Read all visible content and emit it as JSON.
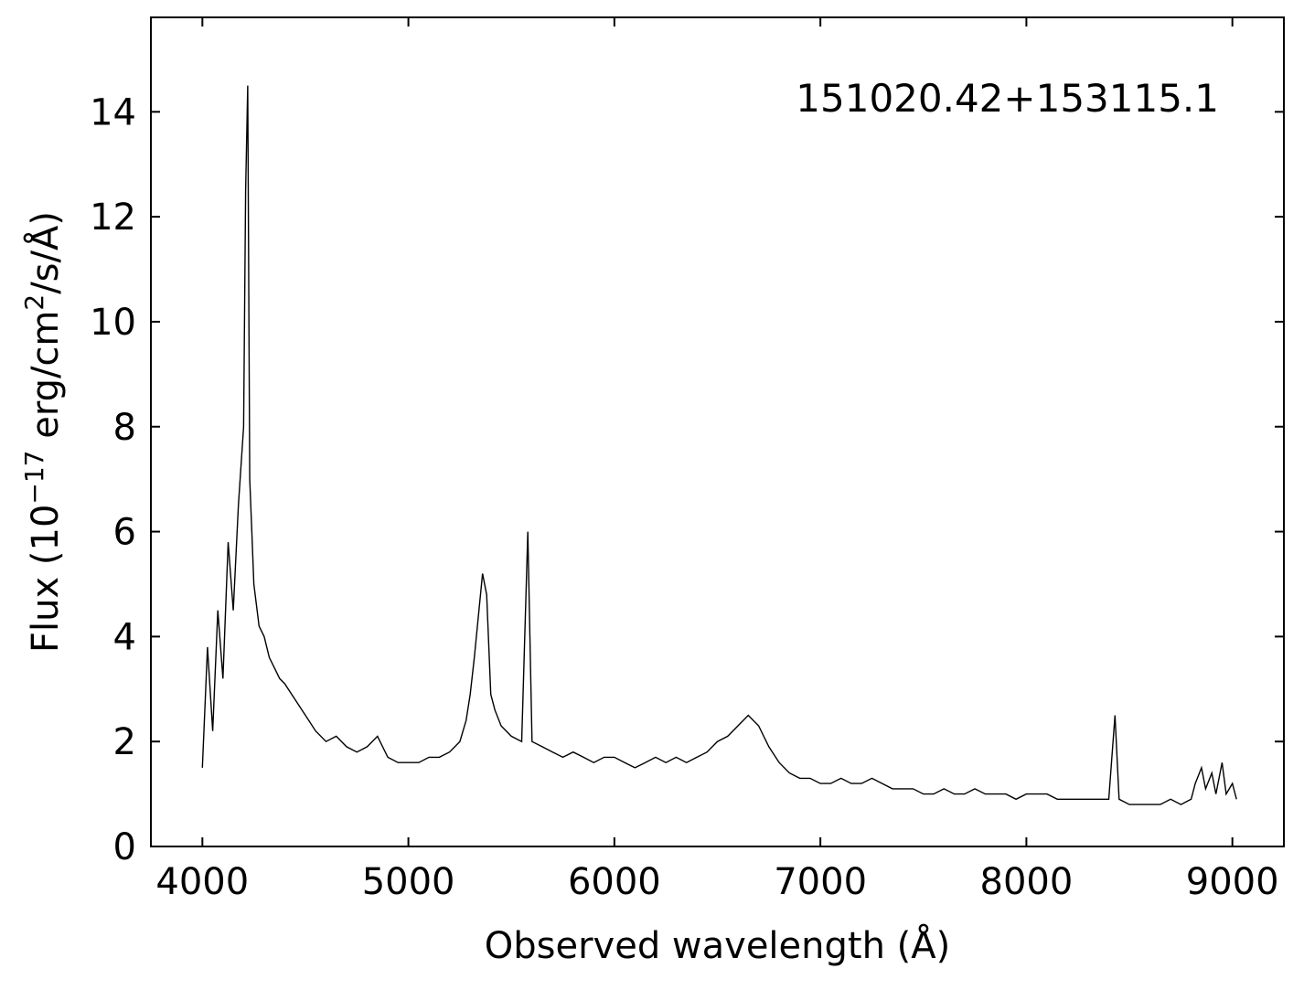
{
  "chart_data": {
    "type": "line",
    "title": "",
    "annotation": "151020.42+153115.1",
    "xlabel": "Observed wavelength (Å)",
    "ylabel": {
      "prefix": "Flux (10",
      "exponent": "−17",
      "middle": " erg/cm",
      "exponent2": "2",
      "suffix": "/s/Å)"
    },
    "xlim": [
      3750,
      9250
    ],
    "ylim": [
      0,
      15.8
    ],
    "x_ticks": [
      4000,
      5000,
      6000,
      7000,
      8000,
      9000
    ],
    "x_tick_labels": [
      "4000",
      "5000",
      "6000",
      "7000",
      "8000",
      "9000"
    ],
    "y_ticks": [
      0,
      2,
      4,
      6,
      8,
      10,
      12,
      14
    ],
    "y_tick_labels": [
      "0",
      "2",
      "4",
      "6",
      "8",
      "10",
      "12",
      "14"
    ],
    "grid": false,
    "legend": "none",
    "line_color": "#000000",
    "series": [
      {
        "x": [
          4000,
          4025,
          4050,
          4075,
          4100,
          4125,
          4150,
          4175,
          4200,
          4210,
          4220,
          4230,
          4240,
          4250,
          4275,
          4300,
          4325,
          4350,
          4375,
          4400,
          4450,
          4500,
          4550,
          4600,
          4650,
          4700,
          4750,
          4800,
          4850,
          4900,
          4950,
          5000,
          5050,
          5100,
          5150,
          5200,
          5250,
          5280,
          5300,
          5320,
          5340,
          5360,
          5380,
          5400,
          5420,
          5450,
          5500,
          5550,
          5580,
          5600,
          5650,
          5700,
          5750,
          5800,
          5850,
          5900,
          5950,
          6000,
          6050,
          6100,
          6150,
          6200,
          6250,
          6300,
          6350,
          6400,
          6450,
          6500,
          6550,
          6600,
          6650,
          6700,
          6750,
          6800,
          6850,
          6900,
          6950,
          7000,
          7050,
          7100,
          7150,
          7200,
          7250,
          7300,
          7350,
          7400,
          7450,
          7500,
          7550,
          7600,
          7650,
          7700,
          7750,
          7800,
          7850,
          7900,
          7950,
          8000,
          8050,
          8100,
          8150,
          8200,
          8250,
          8300,
          8350,
          8400,
          8430,
          8450,
          8500,
          8550,
          8600,
          8650,
          8700,
          8750,
          8800,
          8820,
          8850,
          8870,
          8900,
          8920,
          8950,
          8970,
          9000,
          9020
        ],
        "y": [
          1.5,
          3.8,
          2.2,
          4.5,
          3.2,
          5.8,
          4.5,
          6.5,
          8.0,
          12.5,
          14.5,
          7.0,
          6.0,
          5.0,
          4.2,
          4.0,
          3.6,
          3.4,
          3.2,
          3.1,
          2.8,
          2.5,
          2.2,
          2.0,
          2.1,
          1.9,
          1.8,
          1.9,
          2.1,
          1.7,
          1.6,
          1.6,
          1.6,
          1.7,
          1.7,
          1.8,
          2.0,
          2.4,
          2.9,
          3.6,
          4.4,
          5.2,
          4.8,
          2.9,
          2.6,
          2.3,
          2.1,
          2.0,
          6.0,
          2.0,
          1.9,
          1.8,
          1.7,
          1.8,
          1.7,
          1.6,
          1.7,
          1.7,
          1.6,
          1.5,
          1.6,
          1.7,
          1.6,
          1.7,
          1.6,
          1.7,
          1.8,
          2.0,
          2.1,
          2.3,
          2.5,
          2.3,
          1.9,
          1.6,
          1.4,
          1.3,
          1.3,
          1.2,
          1.2,
          1.3,
          1.2,
          1.2,
          1.3,
          1.2,
          1.1,
          1.1,
          1.1,
          1.0,
          1.0,
          1.1,
          1.0,
          1.0,
          1.1,
          1.0,
          1.0,
          1.0,
          0.9,
          1.0,
          1.0,
          1.0,
          0.9,
          0.9,
          0.9,
          0.9,
          0.9,
          0.9,
          2.5,
          0.9,
          0.8,
          0.8,
          0.8,
          0.8,
          0.9,
          0.8,
          0.9,
          1.2,
          1.5,
          1.1,
          1.4,
          1.0,
          1.6,
          1.0,
          1.2,
          0.9
        ]
      }
    ]
  }
}
